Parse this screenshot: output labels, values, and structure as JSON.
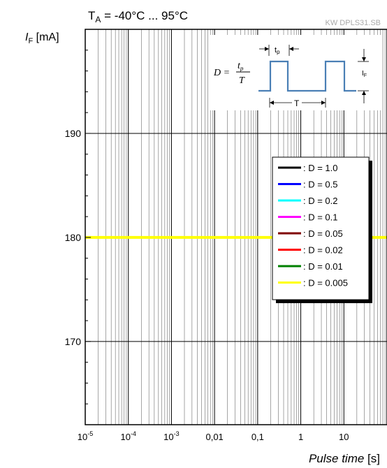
{
  "header": {
    "condition_base": "T",
    "condition_sub": "A",
    "condition_rest": " = -40°C ... 95°C",
    "watermark": "KW DPLS31.SB"
  },
  "axes": {
    "y_label_base": "I",
    "y_label_sub": "F",
    "y_label_unit": " [mA]",
    "x_label_main": "Pulse time",
    "x_label_unit": " [s]"
  },
  "inset": {
    "formula_lhs": "D =",
    "formula_num": "t",
    "formula_num_sub": "p",
    "formula_den": "T",
    "tp_label": "t",
    "tp_sub": "p",
    "T_label": "T",
    "IF_label": "I",
    "IF_sub": "F",
    "trace_color": "#4a7fb5"
  },
  "chart_data": {
    "type": "line",
    "xscale": "log",
    "xlim": [
      1e-05,
      100
    ],
    "ylim": [
      162,
      200
    ],
    "x_tick_labels": [
      {
        "base": "10",
        "exp": "-5",
        "value": 1e-05
      },
      {
        "base": "10",
        "exp": "-4",
        "value": 0.0001
      },
      {
        "base": "10",
        "exp": "-3",
        "value": 0.001
      },
      {
        "base": "0,01",
        "exp": "",
        "value": 0.01
      },
      {
        "base": "0,1",
        "exp": "",
        "value": 0.1
      },
      {
        "base": "1",
        "exp": "",
        "value": 1
      },
      {
        "base": "10",
        "exp": "",
        "value": 10
      }
    ],
    "y_ticks": [
      170,
      180,
      190
    ],
    "y_tick_labels": [
      "170",
      "180",
      "190"
    ],
    "grid": true,
    "legend_position": "right",
    "series": [
      {
        "name": ": D = 1.0",
        "color": "#000000",
        "x": [
          1e-05,
          100
        ],
        "y": [
          180,
          180
        ]
      },
      {
        "name": ": D = 0.5",
        "color": "#0000ff",
        "x": [
          1e-05,
          100
        ],
        "y": [
          180,
          180
        ]
      },
      {
        "name": ": D = 0.2",
        "color": "#00ffff",
        "x": [
          1e-05,
          100
        ],
        "y": [
          180,
          180
        ]
      },
      {
        "name": ": D = 0.1",
        "color": "#ff00ff",
        "x": [
          1e-05,
          100
        ],
        "y": [
          180,
          180
        ]
      },
      {
        "name": ": D = 0.05",
        "color": "#800000",
        "x": [
          1e-05,
          100
        ],
        "y": [
          180,
          180
        ]
      },
      {
        "name": ": D = 0.02",
        "color": "#ff0000",
        "x": [
          1e-05,
          100
        ],
        "y": [
          180,
          180
        ]
      },
      {
        "name": ": D = 0.01",
        "color": "#008000",
        "x": [
          1e-05,
          100
        ],
        "y": [
          180,
          180
        ]
      },
      {
        "name": ": D = 0.005",
        "color": "#ffff00",
        "x": [
          1e-05,
          100
        ],
        "y": [
          180,
          180
        ]
      }
    ]
  }
}
